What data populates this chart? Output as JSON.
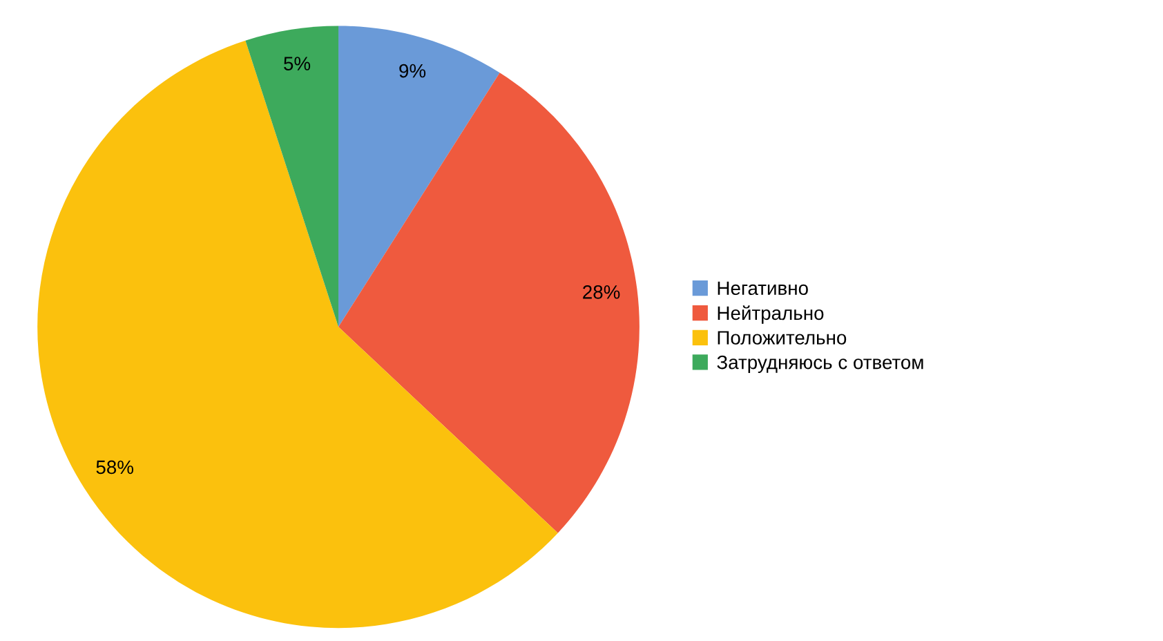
{
  "chart_data": {
    "type": "pie",
    "categories": [
      "Негативно",
      "Нейтрально",
      "Положительно",
      "Затрудняюсь с ответом"
    ],
    "values": [
      9,
      28,
      58,
      5
    ],
    "colors": [
      "#6a9ad8",
      "#ef5a3e",
      "#fbc10d",
      "#3daa5c"
    ],
    "value_labels": [
      "9%",
      "28%",
      "58%",
      "5%"
    ],
    "legend": "right"
  }
}
